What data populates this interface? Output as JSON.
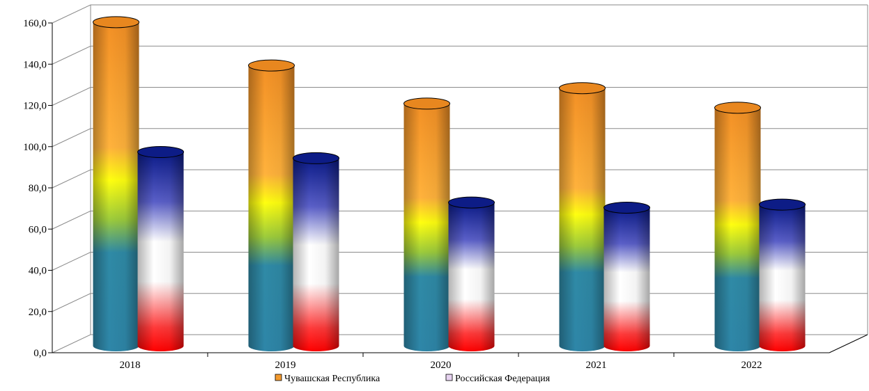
{
  "chart_data": {
    "type": "bar",
    "style": "3d-cylinder",
    "categories": [
      "2018",
      "2019",
      "2020",
      "2021",
      "2022"
    ],
    "y_ticks": [
      "0,0",
      "20,0",
      "40,0",
      "60,0",
      "80,0",
      "100,0",
      "120,0",
      "140,0",
      "160,0"
    ],
    "ylim": [
      0,
      160
    ],
    "grid": true,
    "legend_position": "bottom",
    "series": [
      {
        "name": "Чувашская  Республика",
        "values": [
          157.0,
          136.0,
          117.5,
          125.0,
          115.5
        ],
        "color": "#F39A2E"
      },
      {
        "name": "Российская Федерация",
        "values": [
          94.0,
          91.0,
          69.5,
          67.0,
          68.5
        ],
        "color": "#1E2F9A"
      }
    ]
  }
}
